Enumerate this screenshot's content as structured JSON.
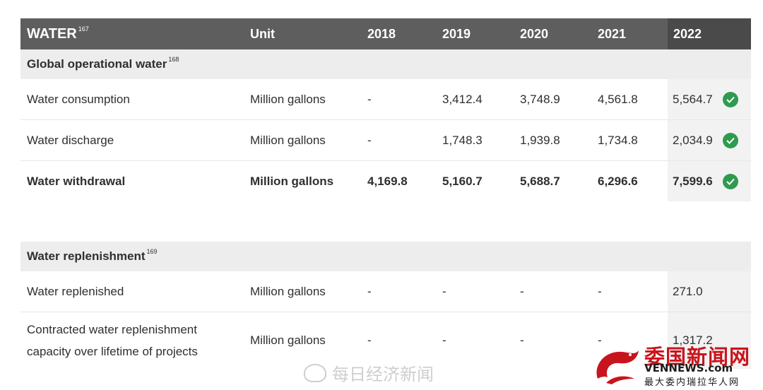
{
  "header": {
    "title": "WATER",
    "title_note": "167",
    "unit": "Unit",
    "years": [
      "2018",
      "2019",
      "2020",
      "2021",
      "2022"
    ]
  },
  "section1": {
    "title": "Global operational water",
    "note": "168"
  },
  "rows1": [
    {
      "label": "Water consumption",
      "unit": "Million gallons",
      "values": [
        "-",
        "3,412.4",
        "3,748.9",
        "4,561.8",
        "5,564.7"
      ],
      "verified": true
    },
    {
      "label": "Water discharge",
      "unit": "Million gallons",
      "values": [
        "-",
        "1,748.3",
        "1,939.8",
        "1,734.8",
        "2,034.9"
      ],
      "verified": true
    },
    {
      "label": "Water withdrawal",
      "unit": "Million gallons",
      "values": [
        "4,169.8",
        "5,160.7",
        "5,688.7",
        "6,296.6",
        "7,599.6"
      ],
      "verified": true
    }
  ],
  "section2": {
    "title": "Water replenishment",
    "note": "169"
  },
  "rows2": [
    {
      "label": "Water replenished",
      "unit": "Million gallons",
      "values": [
        "-",
        "-",
        "-",
        "-",
        "271.0"
      ]
    },
    {
      "label": "Contracted water replenishment capacity over lifetime of projects",
      "unit": "Million gallons",
      "values": [
        "-",
        "-",
        "-",
        "-",
        "1,317.2"
      ]
    }
  ],
  "watermark": "每日经济新闻",
  "logo": {
    "cn": "委国新闻网",
    "en": "VENNEWS.com",
    "sub": "最大委内瑞拉华人网"
  },
  "colors": {
    "header_bg": "#5e5e5e",
    "header_current": "#4a4a4a",
    "section_bg": "#ededed",
    "check": "#2e9b4f",
    "logo_red": "#c8151d"
  }
}
